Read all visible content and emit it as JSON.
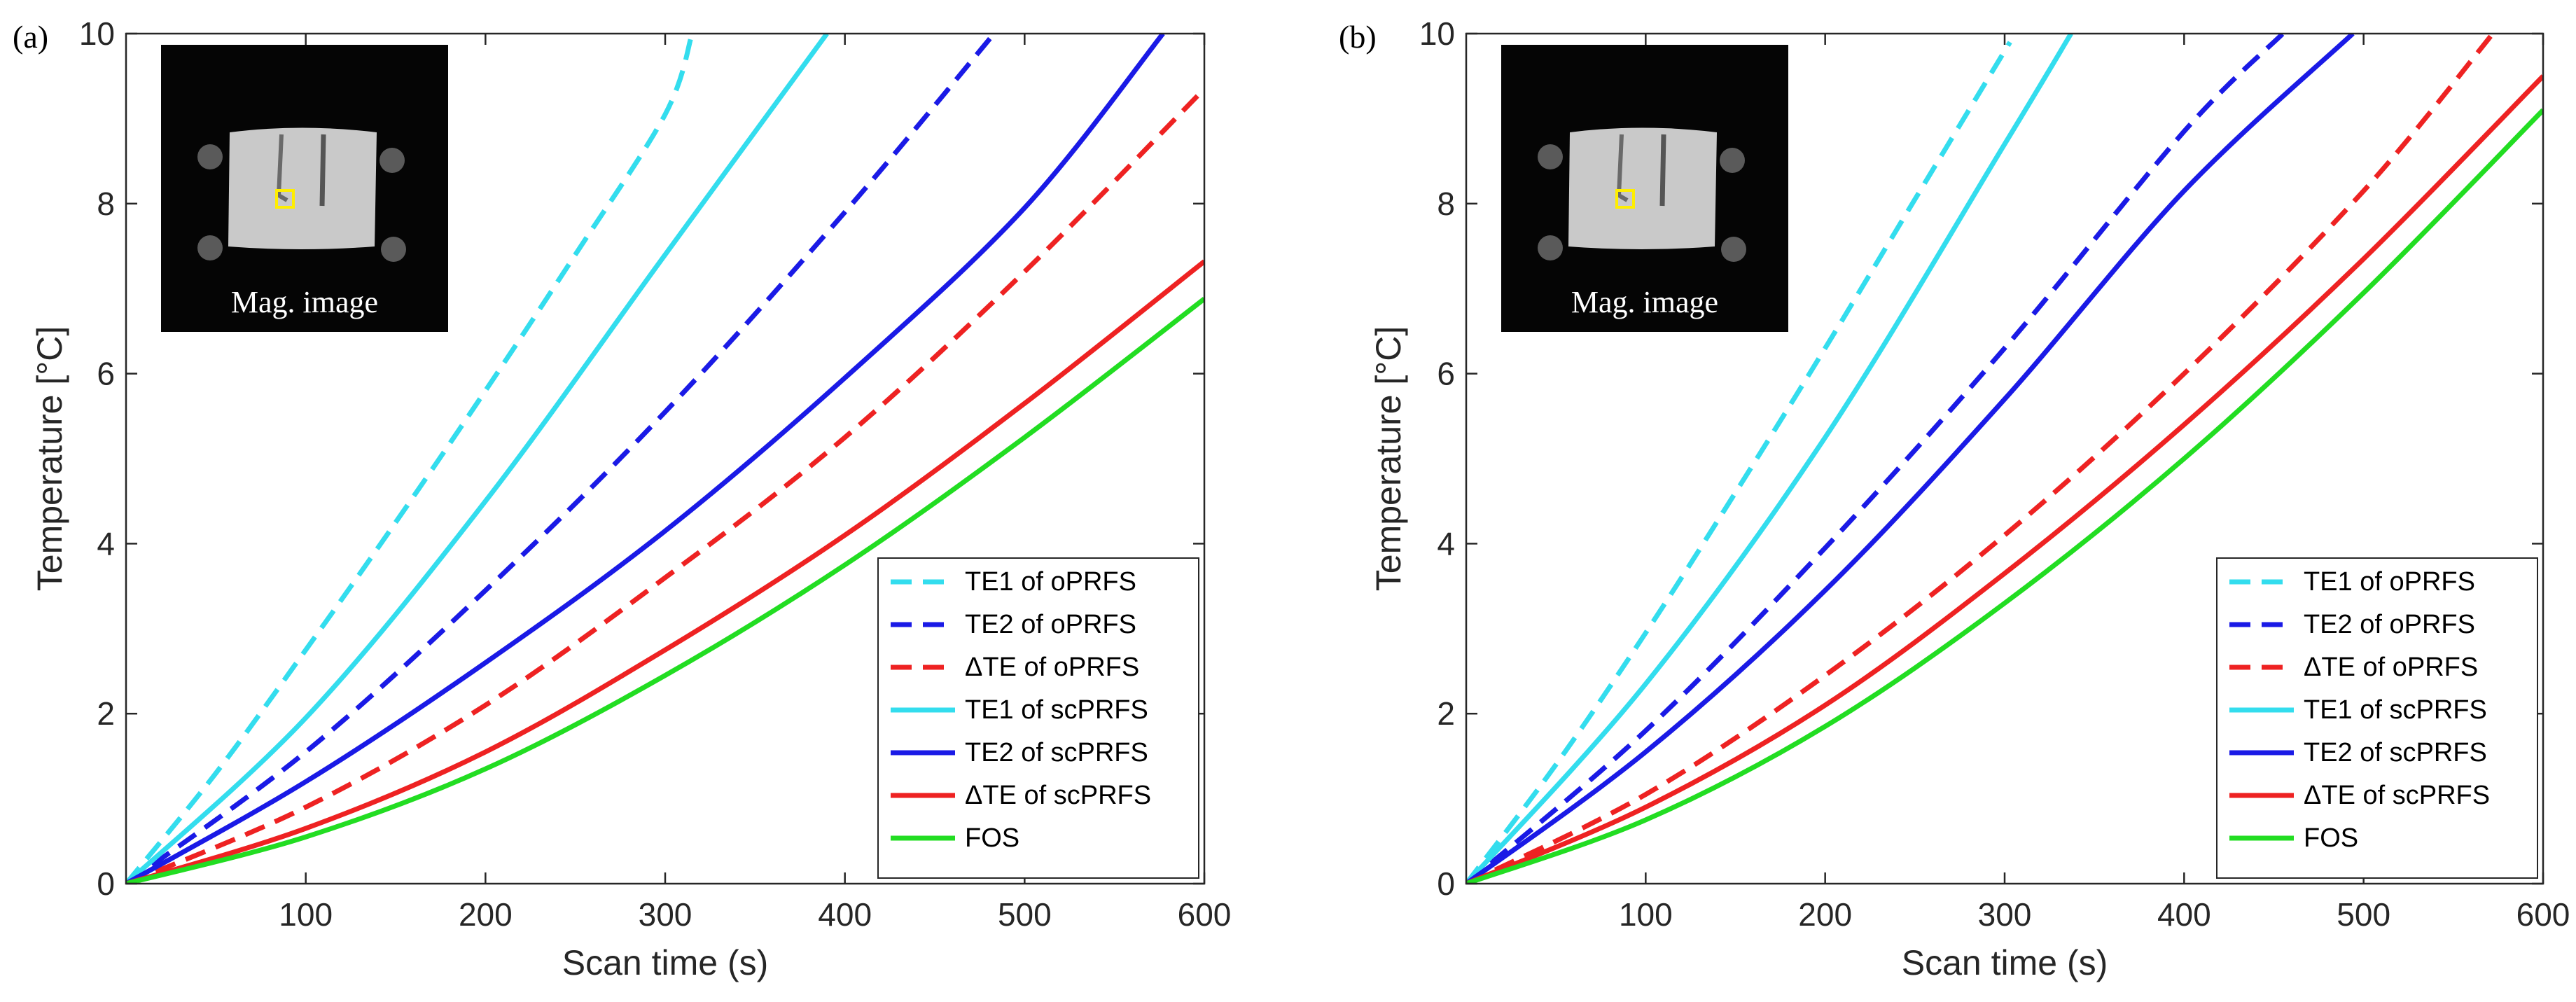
{
  "chart_data": [
    {
      "type": "line",
      "panel_label": "(a)",
      "xlabel": "Scan time (s)",
      "ylabel": "Temperature [°C]",
      "xlim": [
        0,
        600
      ],
      "ylim": [
        0,
        10
      ],
      "xticks": [
        "100",
        "200",
        "300",
        "400",
        "500",
        "600"
      ],
      "yticks": [
        "0",
        "2",
        "4",
        "6",
        "8",
        "10"
      ],
      "grid": false,
      "legend_position": "bottom-right",
      "inset_caption": "Mag. image",
      "series": [
        {
          "name": "TE1 of oPRFS",
          "color": "#33ddee",
          "dash": true,
          "x": [
            0,
            50,
            100,
            150,
            200,
            250,
            300,
            315
          ],
          "y": [
            0,
            1.3,
            2.75,
            4.25,
            5.8,
            7.4,
            9.05,
            10.0
          ]
        },
        {
          "name": "TE2 of oPRFS",
          "color": "#1a1ae6",
          "dash": true,
          "x": [
            0,
            100,
            200,
            300,
            400,
            483
          ],
          "y": [
            0,
            1.55,
            3.45,
            5.55,
            7.9,
            10.0
          ]
        },
        {
          "name": "ΔTE of oPRFS",
          "color": "#ee2222",
          "dash": true,
          "x": [
            0,
            100,
            200,
            300,
            400,
            500,
            600
          ],
          "y": [
            0,
            0.9,
            2.1,
            3.6,
            5.25,
            7.2,
            9.35
          ]
        },
        {
          "name": "TE1 of scPRFS",
          "color": "#33ddee",
          "dash": false,
          "x": [
            0,
            100,
            200,
            300,
            390
          ],
          "y": [
            0,
            1.95,
            4.5,
            7.4,
            10.0
          ]
        },
        {
          "name": "TE2 of scPRFS",
          "color": "#1a1ae6",
          "dash": false,
          "x": [
            0,
            100,
            200,
            300,
            400,
            500,
            577
          ],
          "y": [
            0,
            1.2,
            2.6,
            4.15,
            5.95,
            7.95,
            10.0
          ]
        },
        {
          "name": "ΔTE of scPRFS",
          "color": "#ee2222",
          "dash": false,
          "x": [
            0,
            100,
            200,
            300,
            400,
            500,
            600
          ],
          "y": [
            0,
            0.65,
            1.55,
            2.75,
            4.1,
            5.65,
            7.32
          ]
        },
        {
          "name": "FOS",
          "color": "#22dd22",
          "dash": false,
          "x": [
            0,
            100,
            200,
            300,
            400,
            500,
            600
          ],
          "y": [
            0,
            0.55,
            1.35,
            2.45,
            3.75,
            5.25,
            6.88
          ]
        }
      ]
    },
    {
      "type": "line",
      "panel_label": "(b)",
      "xlabel": "Scan time (s)",
      "ylabel": "Temperature [°C]",
      "xlim": [
        0,
        600
      ],
      "ylim": [
        0,
        10
      ],
      "xticks": [
        "100",
        "200",
        "300",
        "400",
        "500",
        "600"
      ],
      "yticks": [
        "0",
        "2",
        "4",
        "6",
        "8",
        "10"
      ],
      "grid": false,
      "legend_position": "bottom-right",
      "inset_caption": "Mag. image",
      "series": [
        {
          "name": "TE1 of oPRFS",
          "color": "#33ddee",
          "dash": true,
          "x": [
            0,
            50,
            100,
            150,
            200,
            250,
            303
          ],
          "y": [
            0,
            1.4,
            2.95,
            4.6,
            6.3,
            8.05,
            9.9
          ]
        },
        {
          "name": "TE2 of oPRFS",
          "color": "#1a1ae6",
          "dash": true,
          "x": [
            0,
            100,
            200,
            300,
            400,
            455
          ],
          "y": [
            0,
            1.8,
            3.95,
            6.3,
            8.85,
            10.0
          ]
        },
        {
          "name": "ΔTE of oPRFS",
          "color": "#ee2222",
          "dash": true,
          "x": [
            0,
            100,
            200,
            300,
            400,
            500,
            572
          ],
          "y": [
            0,
            1.05,
            2.45,
            4.1,
            6.0,
            8.15,
            10.0
          ]
        },
        {
          "name": "TE1 of scPRFS",
          "color": "#33ddee",
          "dash": false,
          "x": [
            0,
            100,
            200,
            300,
            337
          ],
          "y": [
            0,
            2.35,
            5.25,
            8.7,
            10.0
          ]
        },
        {
          "name": "TE2 of scPRFS",
          "color": "#1a1ae6",
          "dash": false,
          "x": [
            0,
            100,
            200,
            300,
            400,
            494
          ],
          "y": [
            0,
            1.55,
            3.45,
            5.7,
            8.15,
            10.0
          ]
        },
        {
          "name": "ΔTE of scPRFS",
          "color": "#ee2222",
          "dash": false,
          "x": [
            0,
            100,
            200,
            300,
            400,
            500,
            600
          ],
          "y": [
            0,
            0.9,
            2.1,
            3.65,
            5.4,
            7.35,
            9.5
          ]
        },
        {
          "name": "FOS",
          "color": "#22dd22",
          "dash": false,
          "x": [
            0,
            100,
            200,
            300,
            400,
            500,
            600
          ],
          "y": [
            0,
            0.75,
            1.85,
            3.3,
            5.0,
            6.95,
            9.1
          ]
        }
      ]
    }
  ]
}
